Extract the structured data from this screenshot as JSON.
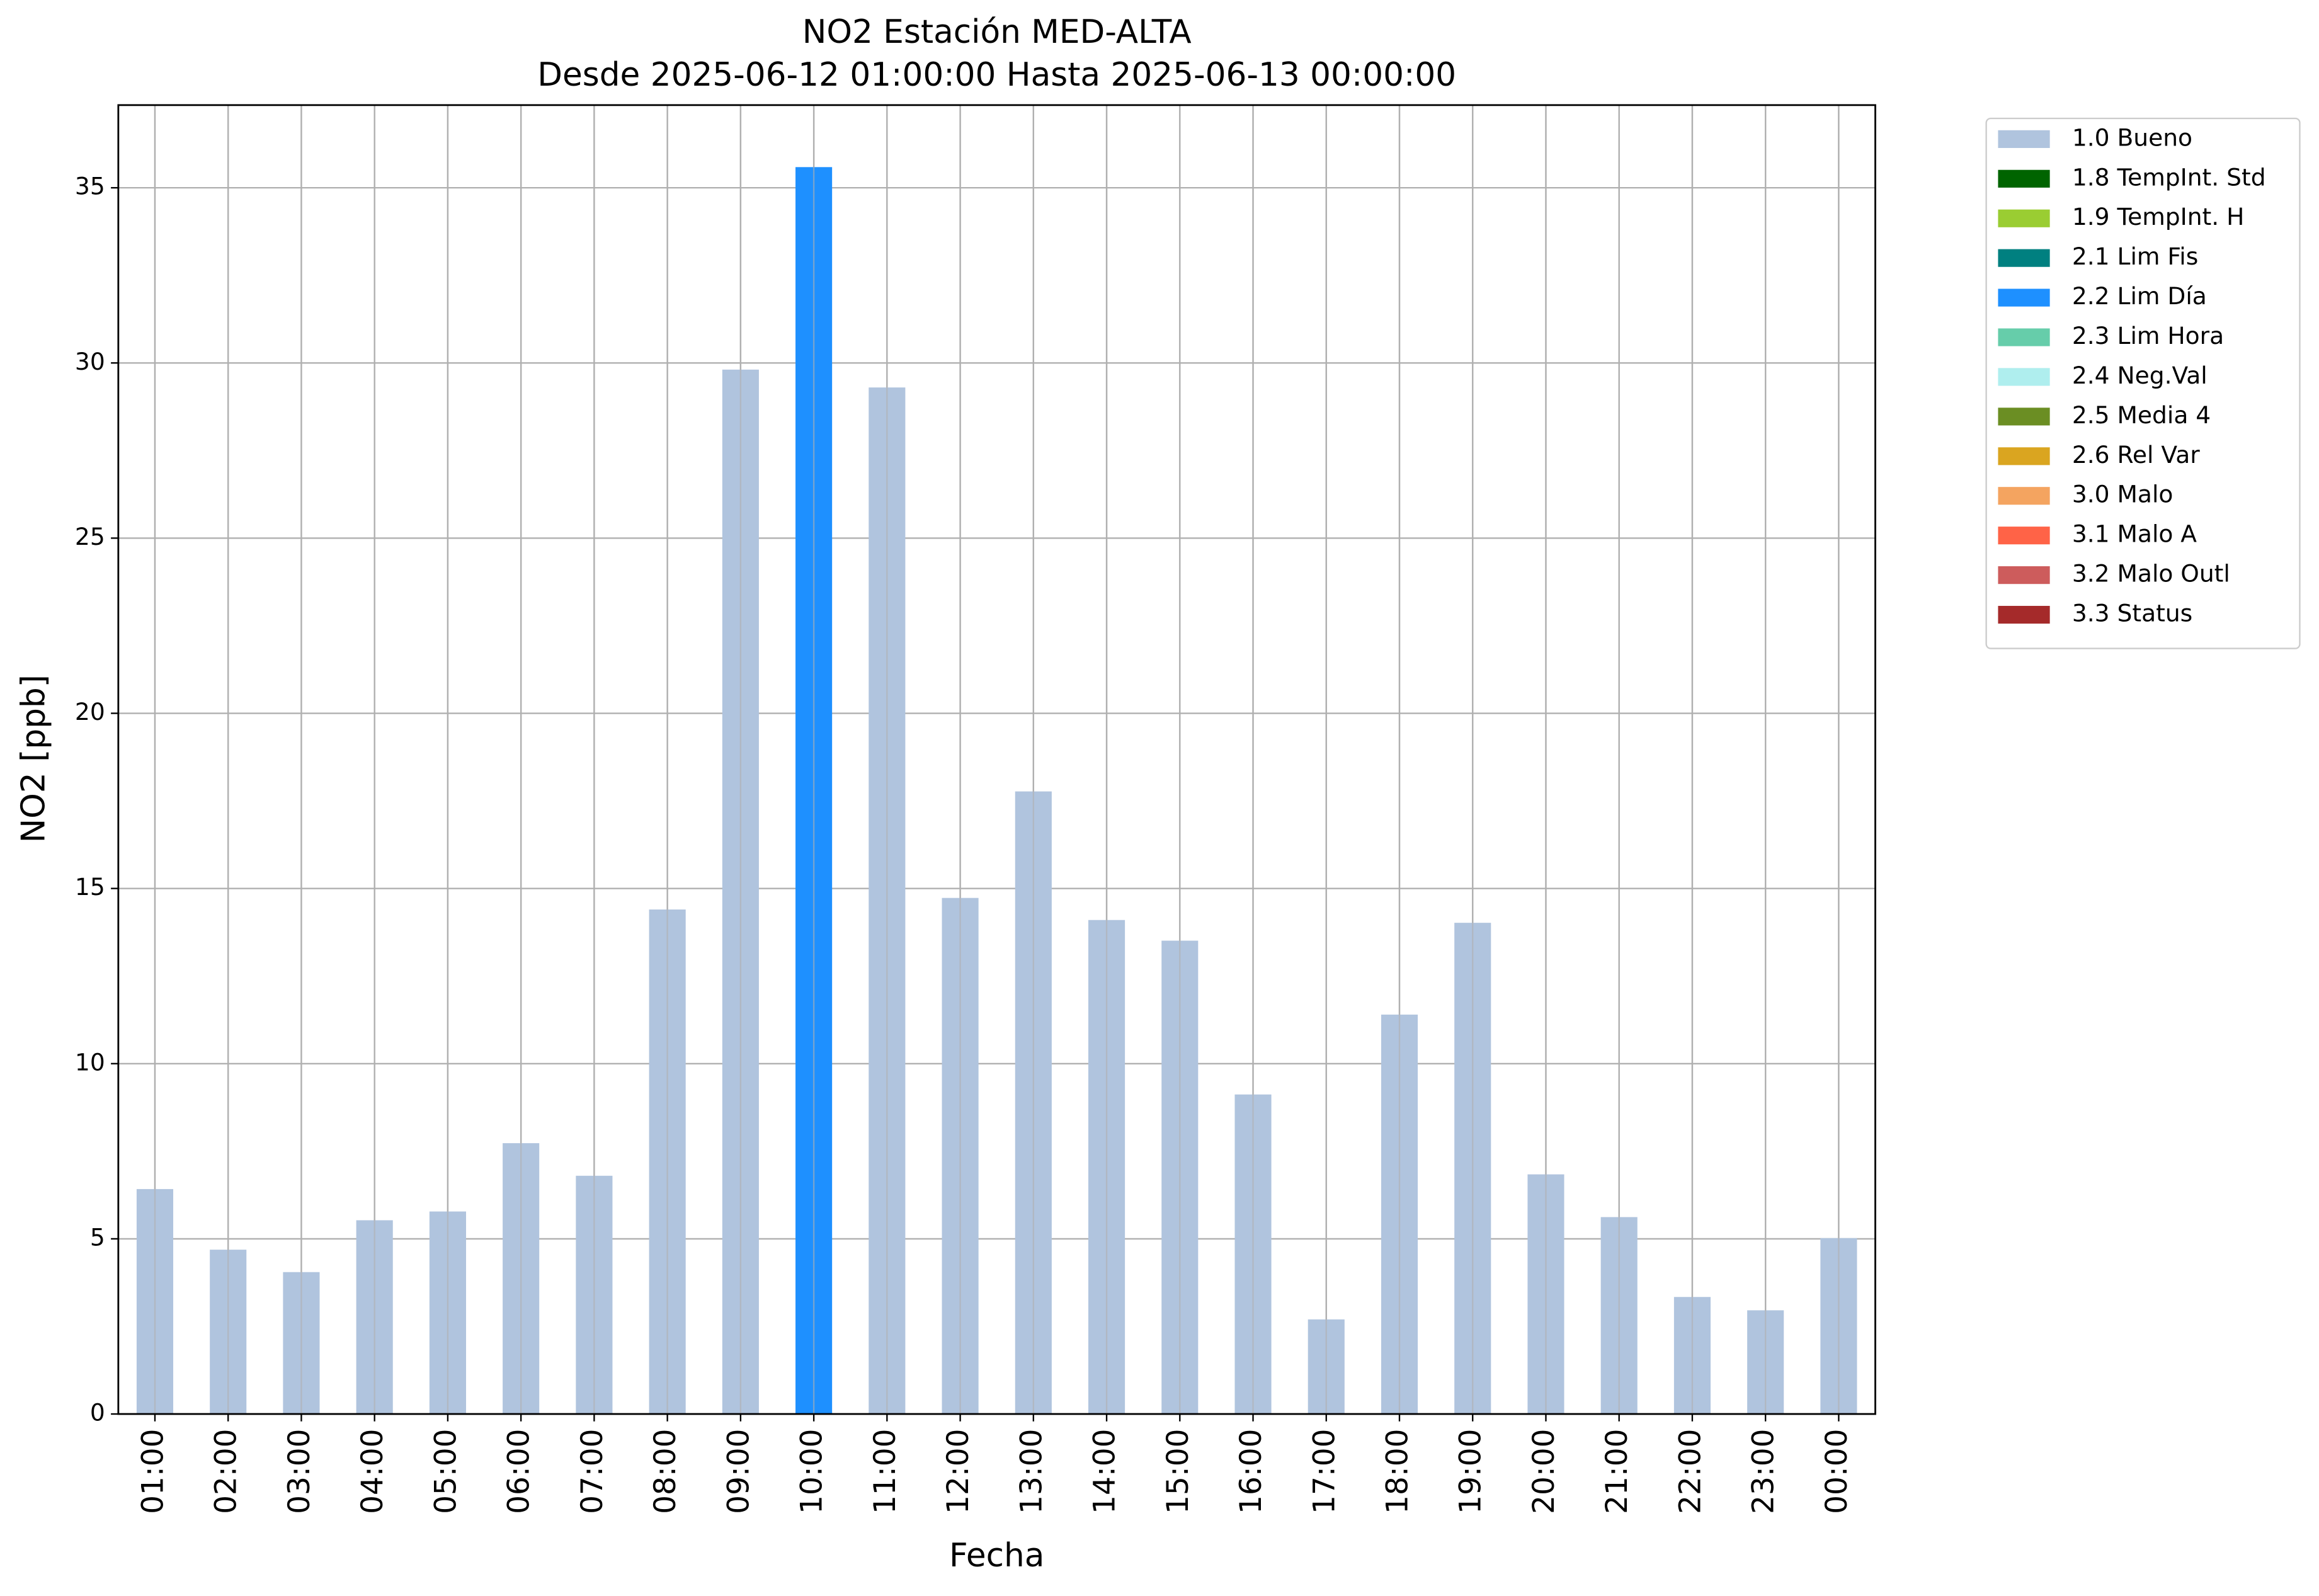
{
  "chart_data": {
    "type": "bar",
    "stacked": true,
    "title": "NO2 Estación MED-ALTA",
    "subtitle": "Desde 2025-06-12 01:00:00 Hasta 2025-06-13 00:00:00",
    "xlabel": "Fecha",
    "ylabel": "NO2 [ppb]",
    "categories": [
      "01:00",
      "02:00",
      "03:00",
      "04:00",
      "05:00",
      "06:00",
      "07:00",
      "08:00",
      "09:00",
      "10:00",
      "11:00",
      "12:00",
      "13:00",
      "14:00",
      "15:00",
      "16:00",
      "17:00",
      "18:00",
      "19:00",
      "20:00",
      "21:00",
      "22:00",
      "23:00",
      "00:00"
    ],
    "series": [
      {
        "name": "1.0 Bueno",
        "color": "#b0c4de",
        "values": [
          6.42,
          4.69,
          4.05,
          5.53,
          5.78,
          7.73,
          6.8,
          14.4,
          29.81,
          null,
          29.3,
          14.73,
          17.77,
          14.1,
          13.51,
          9.12,
          2.7,
          11.4,
          14.02,
          6.84,
          5.62,
          3.34,
          2.96,
          5.02
        ]
      },
      {
        "name": "1.8 TempInt. Std",
        "color": "#006400",
        "values": [
          null,
          null,
          null,
          null,
          null,
          null,
          null,
          null,
          null,
          null,
          null,
          null,
          null,
          null,
          null,
          null,
          null,
          null,
          null,
          null,
          null,
          null,
          null,
          null
        ]
      },
      {
        "name": "1.9 TempInt. H",
        "color": "#9acd32",
        "values": [
          null,
          null,
          null,
          null,
          null,
          null,
          null,
          null,
          null,
          null,
          null,
          null,
          null,
          null,
          null,
          null,
          null,
          null,
          null,
          null,
          null,
          null,
          null,
          null
        ]
      },
      {
        "name": "2.1 Lim Fis",
        "color": "#008080",
        "values": [
          null,
          null,
          null,
          null,
          null,
          null,
          null,
          null,
          null,
          null,
          null,
          null,
          null,
          null,
          null,
          null,
          null,
          null,
          null,
          null,
          null,
          null,
          null,
          null
        ]
      },
      {
        "name": "2.2 Lim Día",
        "color": "#1e90ff",
        "values": [
          null,
          null,
          null,
          null,
          null,
          null,
          null,
          null,
          null,
          35.59,
          null,
          null,
          null,
          null,
          null,
          null,
          null,
          null,
          null,
          null,
          null,
          null,
          null,
          null
        ]
      },
      {
        "name": "2.3 Lim Hora",
        "color": "#66cdaa",
        "values": [
          null,
          null,
          null,
          null,
          null,
          null,
          null,
          null,
          null,
          null,
          null,
          null,
          null,
          null,
          null,
          null,
          null,
          null,
          null,
          null,
          null,
          null,
          null,
          null
        ]
      },
      {
        "name": "2.4 Neg.Val",
        "color": "#afeeee",
        "values": [
          null,
          null,
          null,
          null,
          null,
          null,
          null,
          null,
          null,
          null,
          null,
          null,
          null,
          null,
          null,
          null,
          null,
          null,
          null,
          null,
          null,
          null,
          null,
          null
        ]
      },
      {
        "name": "2.5 Media 4",
        "color": "#6b8e23",
        "values": [
          null,
          null,
          null,
          null,
          null,
          null,
          null,
          null,
          null,
          null,
          null,
          null,
          null,
          null,
          null,
          null,
          null,
          null,
          null,
          null,
          null,
          null,
          null,
          null
        ]
      },
      {
        "name": "2.6 Rel Var",
        "color": "#daa520",
        "values": [
          null,
          null,
          null,
          null,
          null,
          null,
          null,
          null,
          null,
          null,
          null,
          null,
          null,
          null,
          null,
          null,
          null,
          null,
          null,
          null,
          null,
          null,
          null,
          null
        ]
      },
      {
        "name": "3.0 Malo",
        "color": "#f4a460",
        "values": [
          null,
          null,
          null,
          null,
          null,
          null,
          null,
          null,
          null,
          null,
          null,
          null,
          null,
          null,
          null,
          null,
          null,
          null,
          null,
          null,
          null,
          null,
          null,
          null
        ]
      },
      {
        "name": "3.1 Malo A",
        "color": "#ff6347",
        "values": [
          null,
          null,
          null,
          null,
          null,
          null,
          null,
          null,
          null,
          null,
          null,
          null,
          null,
          null,
          null,
          null,
          null,
          null,
          null,
          null,
          null,
          null,
          null,
          null
        ]
      },
      {
        "name": "3.2 Malo Outl",
        "color": "#cd5c5c",
        "values": [
          null,
          null,
          null,
          null,
          null,
          null,
          null,
          null,
          null,
          null,
          null,
          null,
          null,
          null,
          null,
          null,
          null,
          null,
          null,
          null,
          null,
          null,
          null,
          null
        ]
      },
      {
        "name": "3.3 Status",
        "color": "#a52a2a",
        "values": [
          null,
          null,
          null,
          null,
          null,
          null,
          null,
          null,
          null,
          null,
          null,
          null,
          null,
          null,
          null,
          null,
          null,
          null,
          null,
          null,
          null,
          null,
          null,
          null
        ]
      }
    ],
    "ylim": [
      0,
      37.36
    ],
    "yticks": [
      0,
      5,
      10,
      15,
      20,
      25,
      30,
      35
    ],
    "grid": true,
    "legend": "outside-upper-right"
  }
}
